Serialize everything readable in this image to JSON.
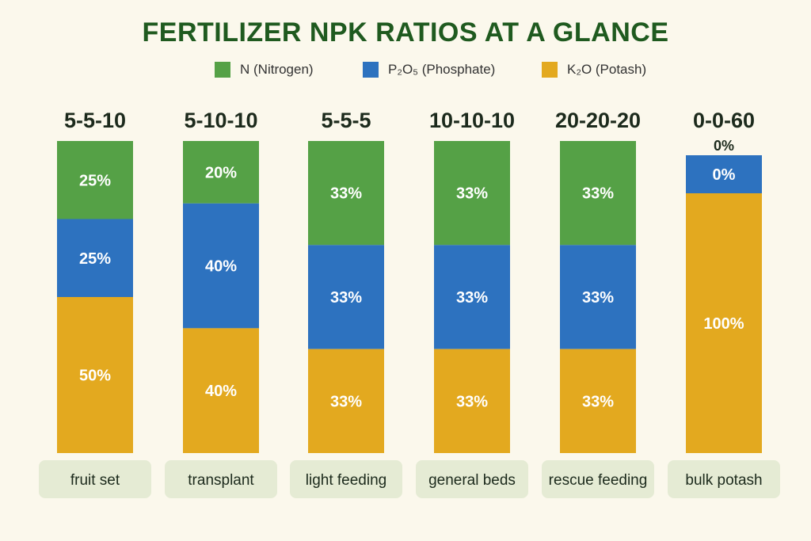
{
  "chart_data": {
    "type": "bar",
    "stacked": true,
    "normalized": true,
    "title": "FERTILIZER NPK RATIOS AT A GLANCE",
    "categories": [
      "5-5-10",
      "5-10-10",
      "5-5-5",
      "10-10-10",
      "20-20-20",
      "0-0-60"
    ],
    "category_labels": [
      "fruit set",
      "transplant",
      "light feeding",
      "general beds",
      "rescue feeding",
      "bulk potash"
    ],
    "series": [
      {
        "name": "N (Nitrogen)",
        "values": [
          25,
          20,
          33,
          33,
          33,
          0
        ],
        "labels": [
          "25%",
          "20%",
          "33%",
          "33%",
          "33%",
          "0%"
        ],
        "color": "#55a146"
      },
      {
        "name": "P₂O₅ (Phosphate)",
        "values": [
          25,
          40,
          33,
          33,
          33,
          0
        ],
        "labels": [
          "25%",
          "40%",
          "33%",
          "33%",
          "33%",
          "0%"
        ],
        "color": "#2d72bf"
      },
      {
        "name": "K₂O (Potash)",
        "values": [
          50,
          40,
          33,
          33,
          33,
          100
        ],
        "labels": [
          "50%",
          "40%",
          "33%",
          "33%",
          "33%",
          "100%"
        ],
        "color": "#e3a91f"
      }
    ],
    "ylim": [
      0,
      100
    ],
    "xlabel": "",
    "ylabel": "",
    "grid": false,
    "legend": "top-center"
  },
  "colors": {
    "background": "#fbf8ec",
    "title": "#1f5a1f",
    "category_pill": "#e5ebd4"
  }
}
